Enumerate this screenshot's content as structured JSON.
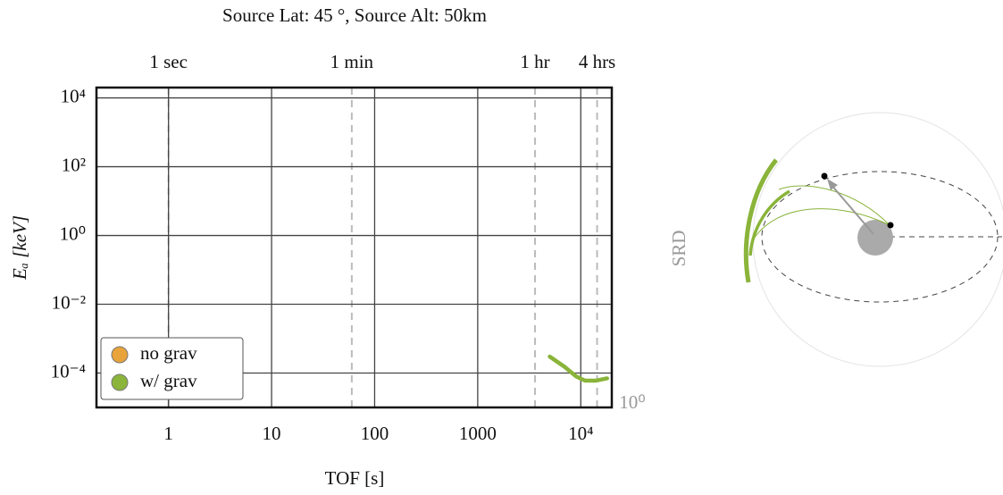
{
  "chart_data": {
    "type": "line",
    "title": "Source Lat: 45 °, Source Alt: 50km",
    "xlabel": "TOF [s]",
    "ylabel": "Eₐ [keV]",
    "xscale": "log",
    "yscale": "log",
    "xlim": [
      0.2,
      20000
    ],
    "ylim": [
      1e-05,
      20000
    ],
    "xticks": [
      1,
      10,
      100,
      1000,
      {
        "value": 10000,
        "label": "10⁴"
      }
    ],
    "yticks": [
      {
        "value": 10000,
        "label": "10⁴"
      },
      {
        "value": 100,
        "label": "10²"
      },
      {
        "value": 1,
        "label": "10⁰"
      },
      {
        "value": 0.01,
        "label": "10⁻²"
      },
      {
        "value": 0.0001,
        "label": "10⁻⁴"
      }
    ],
    "x2ticks": [
      {
        "value": 1,
        "label": "1 sec"
      },
      {
        "value": 60,
        "label": "1 min"
      },
      {
        "value": 3600,
        "label": "1 hr"
      },
      {
        "value": 14400,
        "label": "4 hrs"
      }
    ],
    "grid": true,
    "legend": "lower left",
    "series": [
      {
        "name": "no grav",
        "color": "#e8a33a"
      },
      {
        "name": "w/ grav",
        "color": "#8ab43a",
        "x": [
          5000,
          7000,
          9000,
          11000,
          14000,
          18000
        ],
        "values": [
          0.0003,
          0.00015,
          8e-05,
          6e-05,
          6e-05,
          7e-05
        ]
      }
    ],
    "side_label": "SRD",
    "colorbar_label": "10⁰"
  }
}
